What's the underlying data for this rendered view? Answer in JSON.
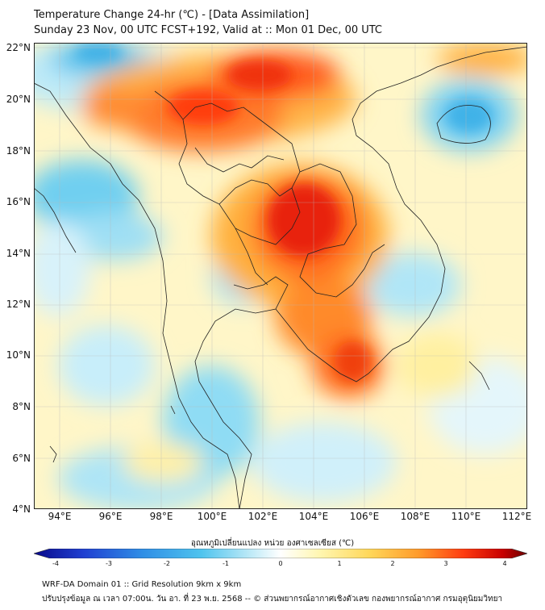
{
  "header": {
    "title_line1": "Temperature Change 24-hr (℃) - [Data Assimilation]",
    "title_line2": "Sunday 23 Nov, 00 UTC FCST+192, Valid at :: Mon 01 Dec, 00 UTC"
  },
  "map": {
    "lat_labels": [
      "22°N",
      "20°N",
      "18°N",
      "16°N",
      "14°N",
      "12°N",
      "10°N",
      "8°N",
      "6°N",
      "4°N"
    ],
    "lon_labels": [
      "94°E",
      "96°E",
      "98°E",
      "100°E",
      "102°E",
      "104°E",
      "106°E",
      "108°E",
      "110°E",
      "112°E"
    ]
  },
  "colorbar": {
    "title": "อุณหภูมิเปลี่ยนแปลง หน่วย องศาเซลเซียส (℃)",
    "ticks": [
      "-4",
      "-3",
      "-2",
      "-1",
      "0",
      "1",
      "2",
      "3",
      "4"
    ],
    "colors": [
      "#08088a",
      "#1f3fd1",
      "#2f8ee6",
      "#4fc4ee",
      "#bfeaf7",
      "#ffffff",
      "#fff6b0",
      "#ffd75a",
      "#ff9a2a",
      "#ff3c10",
      "#c80000",
      "#6a0000"
    ]
  },
  "footer": {
    "line1": "WRF-DA Domain 01 :: Grid Resolution 9km x 9km",
    "line2": "ปรับปรุงข้อมูล ณ เวลา 07:00น. วัน อา. ที่ 23 พ.ย. 2568 -- © ส่วนพยากรณ์อากาศเชิงตัวเลข กองพยากรณ์อากาศ กรมอุตุนิยมวิทยา"
  }
}
